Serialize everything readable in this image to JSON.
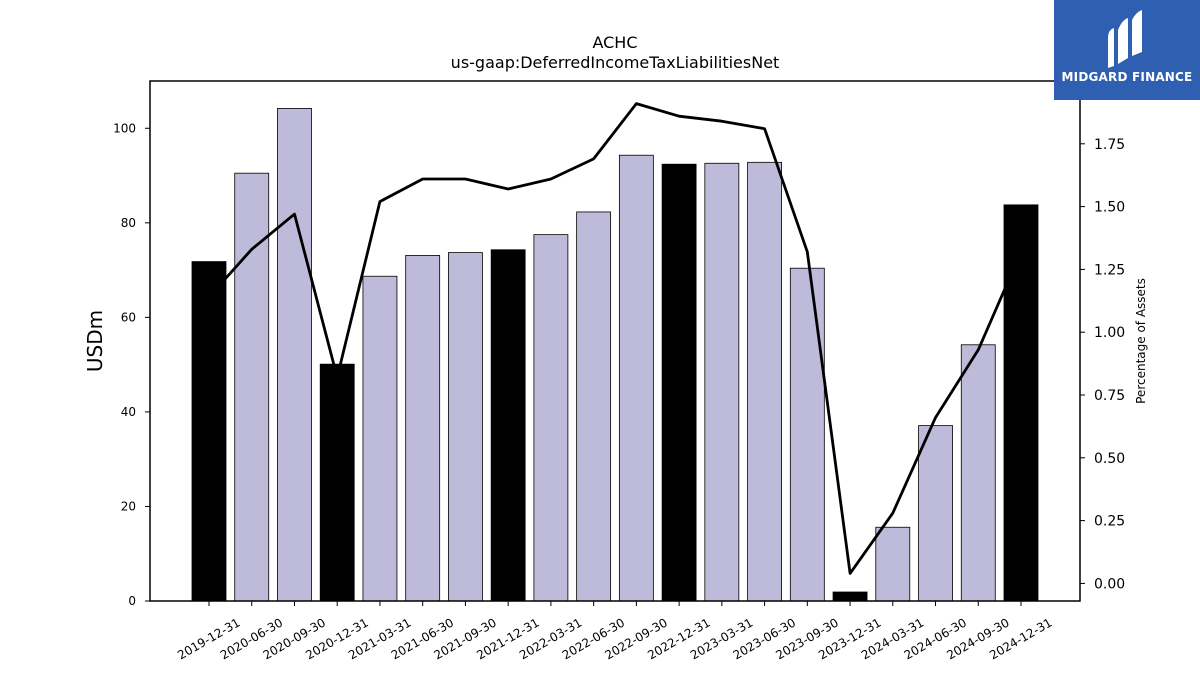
{
  "chart_data": {
    "type": "bar",
    "title": "ACHC",
    "subtitle": "us-gaap:DeferredIncomeTaxLiabilitiesNet",
    "ylabel": "USDm",
    "y2label": "Percentage of Assets",
    "ylim": [
      0,
      110
    ],
    "y2lim": [
      -0.07,
      2.0
    ],
    "yticks": [
      0,
      20,
      40,
      60,
      80,
      100
    ],
    "y2ticks": [
      "0.00",
      "0.25",
      "0.50",
      "0.75",
      "1.00",
      "1.25",
      "1.50",
      "1.75"
    ],
    "categories": [
      "2019-12-31",
      "2020-06-30",
      "2020-09-30",
      "2020-12-31",
      "2021-03-31",
      "2021-06-30",
      "2021-09-30",
      "2021-12-31",
      "2022-03-31",
      "2022-06-30",
      "2022-09-30",
      "2022-12-31",
      "2023-03-31",
      "2023-06-30",
      "2023-09-30",
      "2023-12-31",
      "2024-03-31",
      "2024-06-30",
      "2024-09-30",
      "2024-12-31"
    ],
    "series": [
      {
        "type": "bar",
        "values": [
          71.8,
          90.5,
          104.2,
          50.1,
          68.7,
          73.1,
          73.7,
          74.3,
          77.5,
          82.3,
          94.3,
          92.4,
          92.6,
          92.8,
          70.4,
          1.9,
          15.6,
          37.1,
          54.2,
          83.8
        ],
        "annual": [
          true,
          false,
          false,
          true,
          false,
          false,
          false,
          true,
          false,
          false,
          false,
          true,
          false,
          false,
          false,
          true,
          false,
          false,
          false,
          true
        ]
      },
      {
        "type": "line",
        "axis": "right",
        "values": [
          1.14,
          1.33,
          1.47,
          0.82,
          1.52,
          1.61,
          1.61,
          1.57,
          1.61,
          1.69,
          1.91,
          1.86,
          1.84,
          1.81,
          1.32,
          0.04,
          0.28,
          0.66,
          0.93,
          1.32
        ]
      }
    ],
    "colors": {
      "annual_bar": "#000000",
      "quarter_bar": "#bebada",
      "line": "#000000"
    },
    "grid": false
  },
  "logo": {
    "text": "MIDGARD FINANCE",
    "icon": "midgard-logo-icon",
    "bg": "#2f5fb0"
  }
}
